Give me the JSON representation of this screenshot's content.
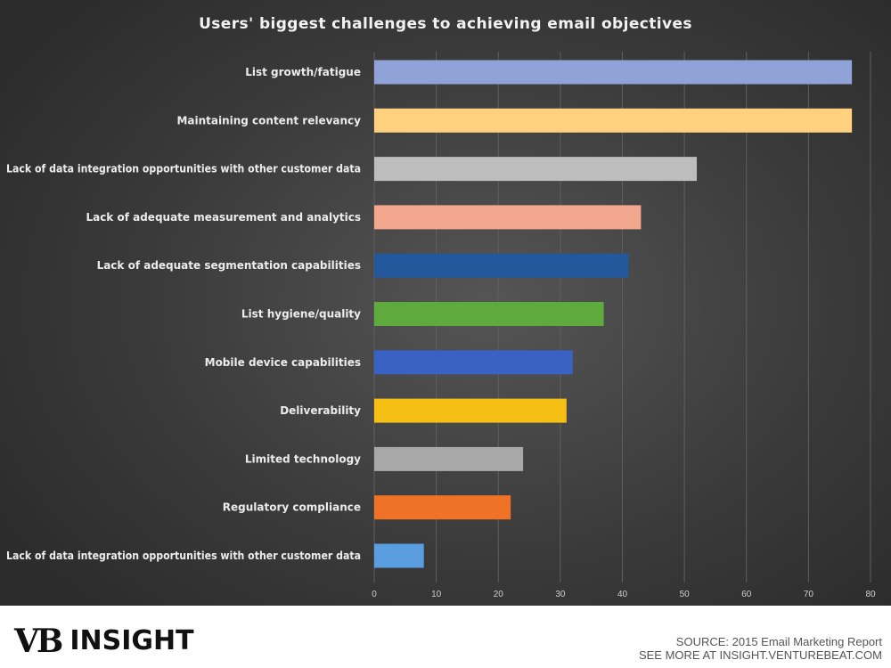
{
  "chart_data": {
    "type": "bar",
    "orientation": "horizontal",
    "title": "Users' biggest challenges to achieving email objectives",
    "categories": [
      "List growth/fatigue",
      "Maintaining content relevancy",
      "Lack of data integration opportunities with other customer data",
      "Lack of adequate measurement and analytics",
      "Lack of adequate segmentation capabilities",
      "List hygiene/quality",
      "Mobile device capabilities",
      "Deliverability",
      "Limited technology",
      "Regulatory compliance",
      "Lack of data integration opportunities with other customer data"
    ],
    "values": [
      77,
      77,
      52,
      43,
      41,
      37,
      32,
      31,
      24,
      22,
      8
    ],
    "colors": [
      "#8fa3d8",
      "#ffd07e",
      "#bdbdbd",
      "#f2a78e",
      "#24589c",
      "#5faa3c",
      "#3a62c4",
      "#f5c013",
      "#a8a8a8",
      "#f07227",
      "#5b9ee0"
    ],
    "xlim": [
      0,
      80
    ],
    "xticks": [
      0,
      10,
      20,
      30,
      40,
      50,
      60,
      70,
      80
    ],
    "grid": "vertical",
    "legend": "none"
  },
  "footer": {
    "logo_mark": "VB",
    "logo_word": "INSIGHT",
    "source_line": "SOURCE: 2015 Email Marketing Report",
    "more_line": "SEE MORE AT INSIGHT.VENTUREBEAT.COM"
  }
}
